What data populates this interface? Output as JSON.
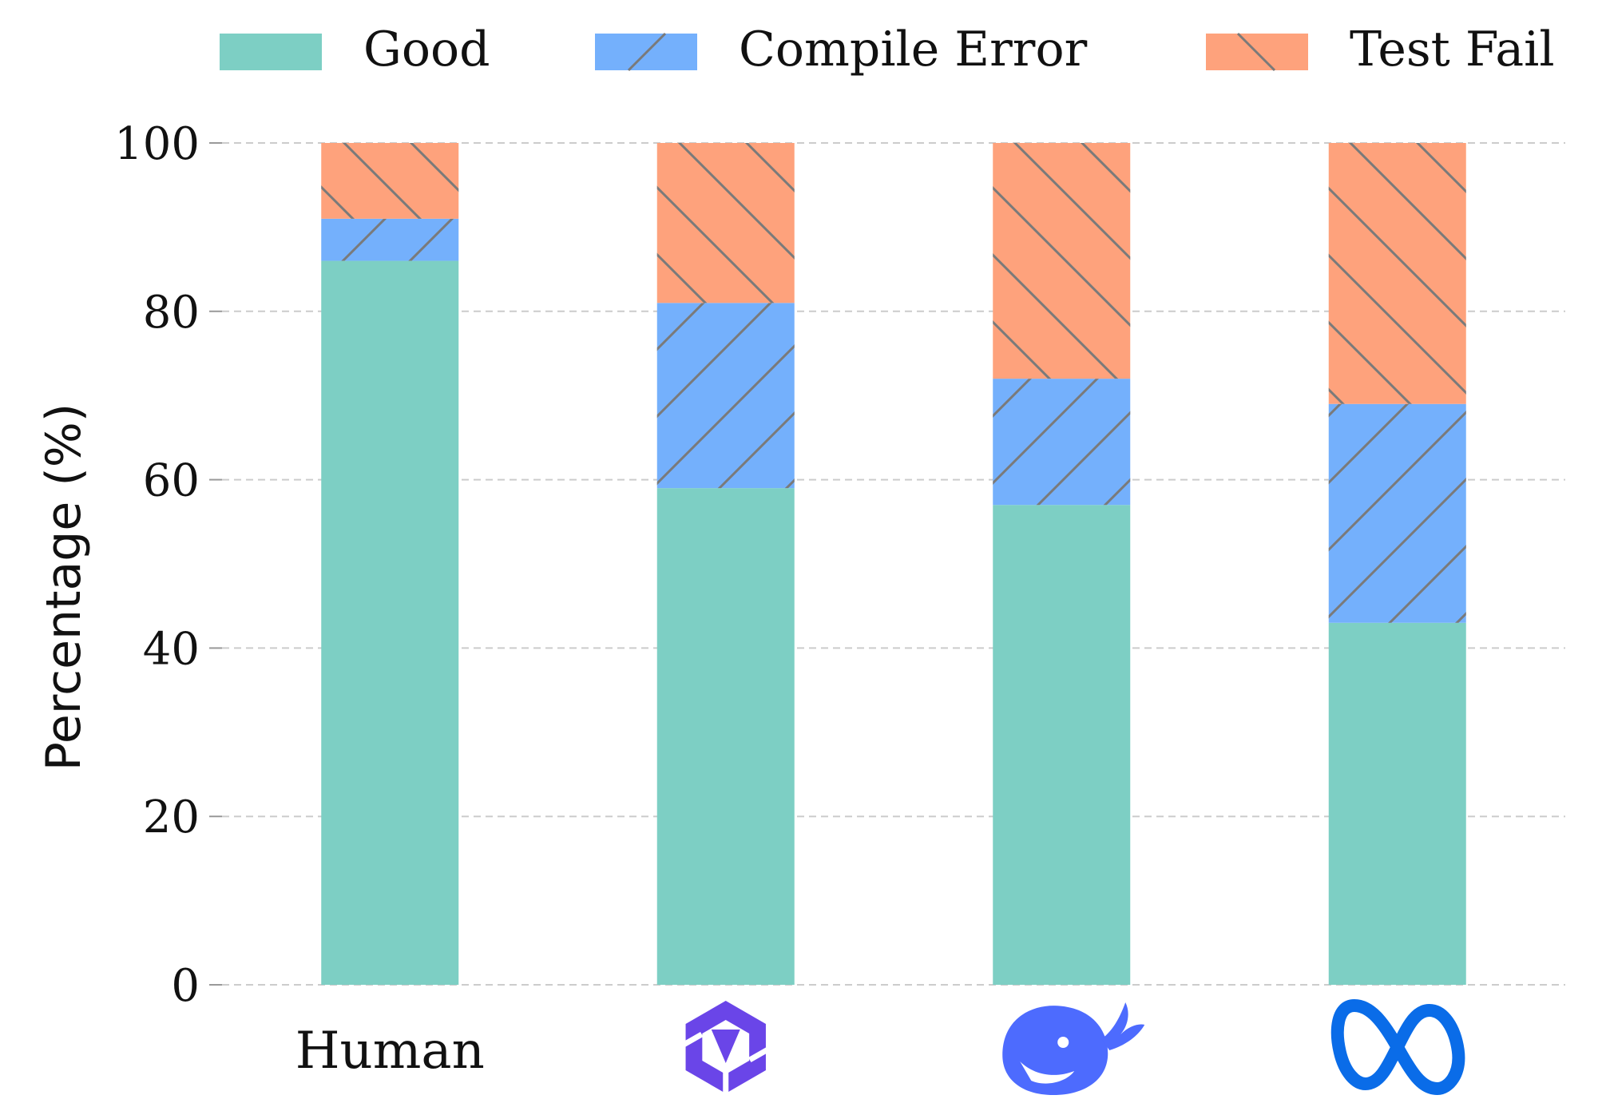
{
  "chart_data": {
    "type": "bar",
    "stacked": true,
    "ylabel": "Percentage (%)",
    "xlabel": "",
    "ylim": [
      0,
      100
    ],
    "yticks": [
      0,
      20,
      40,
      60,
      80,
      100
    ],
    "grid": "horizontal-dashed",
    "legend_position": "top",
    "categories": [
      "Human",
      "qwen-icon",
      "deepseek-icon",
      "meta-icon"
    ],
    "category_labels": [
      "Human",
      "",
      "",
      ""
    ],
    "series": [
      {
        "name": "Good",
        "values": [
          86,
          59,
          57,
          43
        ],
        "color": "#7dcfc4",
        "hatch": "none"
      },
      {
        "name": "Compile Error",
        "values": [
          5,
          22,
          15,
          26
        ],
        "color": "#74b0fc",
        "hatch": "forward-slash"
      },
      {
        "name": "Test Fail",
        "values": [
          9,
          19,
          28,
          31
        ],
        "color": "#fea27c",
        "hatch": "back-slash"
      }
    ]
  }
}
